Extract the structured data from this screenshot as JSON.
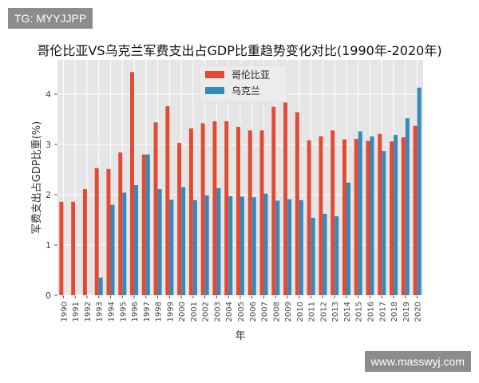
{
  "watermark_top": "TG: MYYJJPP",
  "watermark_bottom": "www.masswyj.com",
  "chart_data": {
    "type": "bar",
    "title": "哥伦比亚VS乌克兰军费支出占GDP比重趋势变化对比(1990年-2020年)",
    "xlabel": "年",
    "ylabel": "军费支出占GDP比重(%)",
    "ylim": [
      0,
      4.7
    ],
    "yticks": [
      0,
      1,
      2,
      3,
      4
    ],
    "grid": true,
    "legend_position": "top-center",
    "categories": [
      "1990",
      "1991",
      "1992",
      "1993",
      "1994",
      "1995",
      "1996",
      "1997",
      "1998",
      "1999",
      "2000",
      "2001",
      "2002",
      "2003",
      "2004",
      "2005",
      "2006",
      "2007",
      "2008",
      "2009",
      "2010",
      "2011",
      "2012",
      "2013",
      "2014",
      "2015",
      "2016",
      "2017",
      "2018",
      "2019",
      "2020"
    ],
    "series": [
      {
        "name": "哥伦比亚",
        "color": "#e24a33",
        "values": [
          1.86,
          1.86,
          2.11,
          2.53,
          2.51,
          2.84,
          4.44,
          2.8,
          3.44,
          3.76,
          3.03,
          3.32,
          3.42,
          3.46,
          3.46,
          3.35,
          3.28,
          3.28,
          3.75,
          3.89,
          3.64,
          3.08,
          3.16,
          3.28,
          3.1,
          3.11,
          3.07,
          3.21,
          3.06,
          3.14,
          3.37
        ]
      },
      {
        "name": "乌克兰",
        "color": "#348abd",
        "values": [
          null,
          null,
          null,
          0.35,
          1.8,
          2.04,
          2.19,
          2.8,
          2.11,
          1.9,
          2.15,
          1.89,
          1.99,
          2.13,
          1.97,
          1.96,
          1.95,
          2.02,
          1.88,
          1.91,
          1.89,
          1.54,
          1.62,
          1.57,
          2.24,
          3.26,
          3.16,
          2.87,
          3.19,
          3.52,
          4.13
        ]
      }
    ]
  }
}
